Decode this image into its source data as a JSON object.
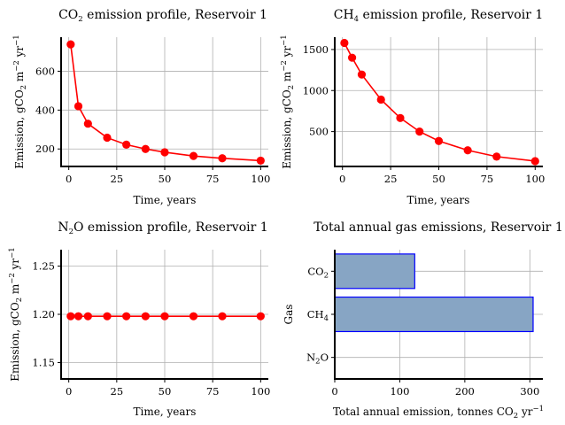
{
  "chart_data": [
    {
      "type": "line",
      "title": "CO2 emission profile, Reservoir 1",
      "xlabel": "Time, years",
      "ylabel": "Emission, gCO2 m-2 yr-1",
      "x": [
        1,
        5,
        10,
        20,
        30,
        40,
        50,
        65,
        80,
        100
      ],
      "series": [
        {
          "values": [
            738,
            420,
            330,
            258,
            222,
            200,
            183,
            164,
            152,
            140
          ],
          "color": "#ff0000"
        }
      ],
      "xlim": [
        -4,
        104
      ],
      "ylim": [
        110,
        775
      ],
      "xticks": [
        0,
        25,
        50,
        75,
        100
      ],
      "yticks": [
        200,
        400,
        600
      ],
      "grid": true
    },
    {
      "type": "line",
      "title": "CH4 emission profile, Reservoir 1",
      "xlabel": "Time, years",
      "ylabel": "Emission, gCO2 m-2 yr-1",
      "x": [
        1,
        5,
        10,
        20,
        30,
        40,
        50,
        65,
        80,
        100
      ],
      "series": [
        {
          "values": [
            1580,
            1400,
            1195,
            890,
            665,
            500,
            385,
            272,
            195,
            140
          ],
          "color": "#ff0000"
        }
      ],
      "xlim": [
        -4,
        104
      ],
      "ylim": [
        75,
        1650
      ],
      "xticks": [
        0,
        25,
        50,
        75,
        100
      ],
      "yticks": [
        500,
        1000,
        1500
      ],
      "grid": true
    },
    {
      "type": "line",
      "title": "N2O emission profile, Reservoir 1",
      "xlabel": "Time, years",
      "ylabel": "Emission, gCO2 m-2 yr-1",
      "x": [
        1,
        5,
        10,
        20,
        30,
        40,
        50,
        65,
        80,
        100
      ],
      "series": [
        {
          "values": [
            1.198,
            1.198,
            1.198,
            1.198,
            1.198,
            1.198,
            1.198,
            1.198,
            1.198,
            1.198
          ],
          "color": "#ff0000"
        }
      ],
      "xlim": [
        -4,
        104
      ],
      "ylim": [
        1.133,
        1.267
      ],
      "xticks": [
        0,
        25,
        50,
        75,
        100
      ],
      "yticks": [
        1.15,
        1.2,
        1.25
      ],
      "grid": true
    },
    {
      "type": "bar",
      "orientation": "horizontal",
      "title": "Total annual gas emissions, Reservoir 1",
      "xlabel": "Total annual emission, tonnes CO2 yr-1",
      "ylabel": "Gas",
      "categories": [
        "CO2",
        "CH4",
        "N2O"
      ],
      "values": [
        123,
        305,
        0
      ],
      "xlim": [
        0,
        320
      ],
      "xticks": [
        0,
        100,
        200,
        300
      ],
      "grid": true,
      "bar_color": "#87a5c4",
      "edge_color": "#0000ff"
    }
  ]
}
